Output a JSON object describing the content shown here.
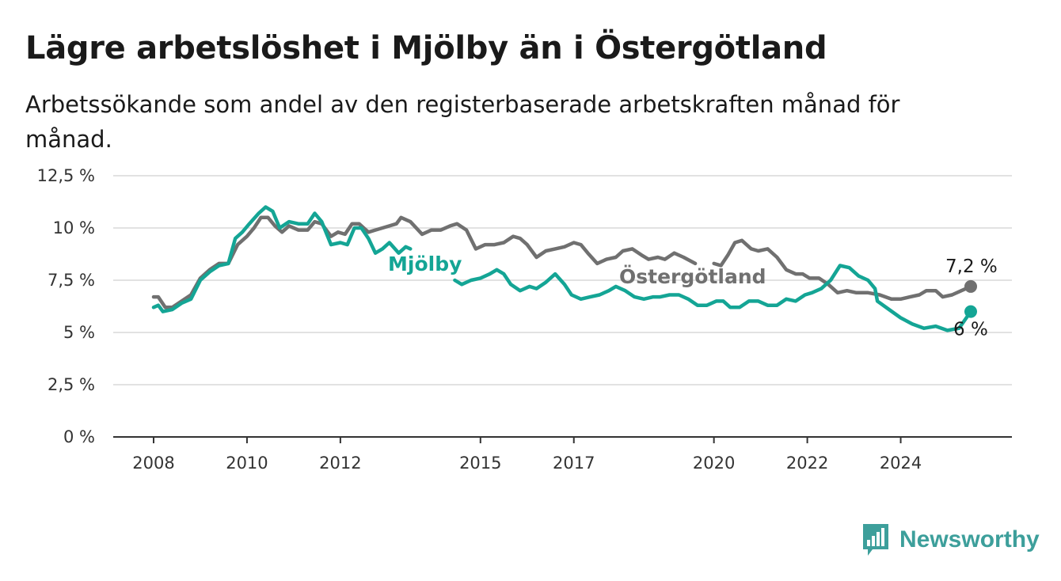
{
  "header": {
    "title": "Lägre arbetslöshet i Mjölby än i Östergötland",
    "subtitle": "Arbetssökande som andel av den registerbaserade arbetskraften månad för månad."
  },
  "brand": {
    "name": "Newsworthy",
    "icon": "bar-chart-logo-icon",
    "color": "#3d9f9b"
  },
  "chart_data": {
    "type": "line",
    "title": "Lägre arbetslöshet i Mjölby än i Östergötland",
    "subtitle": "Arbetssökande som andel av den registerbaserade arbetskraften månad för månad.",
    "ylim": [
      0,
      12.5
    ],
    "y_ticks": [
      0,
      2.5,
      5,
      7.5,
      10,
      12.5
    ],
    "y_tick_labels": [
      "0 %",
      "2,5 %",
      "5 %",
      "7,5 %",
      "10 %",
      "12,5 %"
    ],
    "x_ticks": [
      2008,
      2010,
      2012,
      2015,
      2017,
      2020,
      2022,
      2024
    ],
    "x_tick_labels": [
      "2008",
      "2010",
      "2012",
      "2015",
      "2017",
      "2020",
      "2022",
      "2024"
    ],
    "grid": true,
    "series": [
      {
        "name": "Östergötland",
        "color": "#707070",
        "end_label": "7,2 %",
        "points": [
          [
            2008.0,
            6.7
          ],
          [
            2008.1,
            6.7
          ],
          [
            2008.25,
            6.2
          ],
          [
            2008.4,
            6.2
          ],
          [
            2008.6,
            6.5
          ],
          [
            2008.8,
            6.8
          ],
          [
            2009.0,
            7.6
          ],
          [
            2009.2,
            8.0
          ],
          [
            2009.4,
            8.3
          ],
          [
            2009.6,
            8.3
          ],
          [
            2009.8,
            9.2
          ],
          [
            2010.0,
            9.6
          ],
          [
            2010.15,
            10.0
          ],
          [
            2010.3,
            10.5
          ],
          [
            2010.45,
            10.5
          ],
          [
            2010.6,
            10.1
          ],
          [
            2010.75,
            9.8
          ],
          [
            2010.9,
            10.1
          ],
          [
            2011.1,
            9.9
          ],
          [
            2011.3,
            9.9
          ],
          [
            2011.45,
            10.3
          ],
          [
            2011.6,
            10.2
          ],
          [
            2011.8,
            9.6
          ],
          [
            2011.95,
            9.8
          ],
          [
            2012.1,
            9.7
          ],
          [
            2012.25,
            10.2
          ],
          [
            2012.4,
            10.2
          ],
          [
            2012.6,
            9.8
          ],
          [
            2012.75,
            9.9
          ],
          [
            2012.9,
            10.0
          ],
          [
            2013.05,
            10.1
          ],
          [
            2013.2,
            10.2
          ],
          [
            2013.3,
            10.5
          ],
          [
            2013.5,
            10.3
          ],
          [
            2013.75,
            9.7
          ],
          [
            2013.95,
            9.9
          ],
          [
            2014.15,
            9.9
          ],
          [
            2014.35,
            10.1
          ],
          [
            2014.5,
            10.2
          ],
          [
            2014.7,
            9.9
          ],
          [
            2014.9,
            9.0
          ],
          [
            2015.1,
            9.2
          ],
          [
            2015.3,
            9.2
          ],
          [
            2015.5,
            9.3
          ],
          [
            2015.7,
            9.6
          ],
          [
            2015.85,
            9.5
          ],
          [
            2016.0,
            9.2
          ],
          [
            2016.2,
            8.6
          ],
          [
            2016.4,
            8.9
          ],
          [
            2016.6,
            9.0
          ],
          [
            2016.8,
            9.1
          ],
          [
            2017.0,
            9.3
          ],
          [
            2017.15,
            9.2
          ],
          [
            2017.3,
            8.8
          ],
          [
            2017.5,
            8.3
          ],
          [
            2017.7,
            8.5
          ],
          [
            2017.9,
            8.6
          ],
          [
            2018.05,
            8.9
          ],
          [
            2018.25,
            9.0
          ],
          [
            2018.45,
            8.7
          ],
          [
            2018.6,
            8.5
          ],
          [
            2018.8,
            8.6
          ],
          [
            2018.95,
            8.5
          ],
          [
            2019.15,
            8.8
          ],
          [
            2019.35,
            8.6
          ],
          [
            2019.6,
            8.3
          ],
          [
            2019.95,
            null
          ],
          [
            2020.0,
            8.3
          ],
          [
            2020.15,
            8.2
          ],
          [
            2020.3,
            8.7
          ],
          [
            2020.45,
            9.3
          ],
          [
            2020.6,
            9.4
          ],
          [
            2020.8,
            9.0
          ],
          [
            2020.95,
            8.9
          ],
          [
            2021.15,
            9.0
          ],
          [
            2021.35,
            8.6
          ],
          [
            2021.55,
            8.0
          ],
          [
            2021.75,
            7.8
          ],
          [
            2021.9,
            7.8
          ],
          [
            2022.05,
            7.6
          ],
          [
            2022.25,
            7.6
          ],
          [
            2022.45,
            7.3
          ],
          [
            2022.65,
            6.9
          ],
          [
            2022.85,
            7.0
          ],
          [
            2023.05,
            6.9
          ],
          [
            2023.3,
            6.9
          ],
          [
            2023.55,
            6.8
          ],
          [
            2023.8,
            6.6
          ],
          [
            2024.0,
            6.6
          ],
          [
            2024.2,
            6.7
          ],
          [
            2024.4,
            6.8
          ],
          [
            2024.55,
            7.0
          ],
          [
            2024.75,
            7.0
          ],
          [
            2024.9,
            6.7
          ],
          [
            2025.1,
            6.8
          ],
          [
            2025.3,
            7.0
          ],
          [
            2025.5,
            7.2
          ]
        ]
      },
      {
        "name": "Mjölby",
        "color": "#14a595",
        "end_label": "6 %",
        "points": [
          [
            2008.0,
            6.2
          ],
          [
            2008.1,
            6.3
          ],
          [
            2008.2,
            6.0
          ],
          [
            2008.4,
            6.1
          ],
          [
            2008.6,
            6.4
          ],
          [
            2008.8,
            6.6
          ],
          [
            2009.0,
            7.5
          ],
          [
            2009.2,
            7.9
          ],
          [
            2009.4,
            8.2
          ],
          [
            2009.6,
            8.3
          ],
          [
            2009.75,
            9.5
          ],
          [
            2009.9,
            9.8
          ],
          [
            2010.05,
            10.2
          ],
          [
            2010.25,
            10.7
          ],
          [
            2010.4,
            11.0
          ],
          [
            2010.55,
            10.8
          ],
          [
            2010.7,
            10.0
          ],
          [
            2010.9,
            10.3
          ],
          [
            2011.1,
            10.2
          ],
          [
            2011.3,
            10.2
          ],
          [
            2011.45,
            10.7
          ],
          [
            2011.6,
            10.3
          ],
          [
            2011.8,
            9.2
          ],
          [
            2012.0,
            9.3
          ],
          [
            2012.15,
            9.2
          ],
          [
            2012.3,
            10.0
          ],
          [
            2012.45,
            10.0
          ],
          [
            2012.6,
            9.5
          ],
          [
            2012.75,
            8.8
          ],
          [
            2012.9,
            9.0
          ],
          [
            2013.05,
            9.3
          ],
          [
            2013.25,
            8.8
          ],
          [
            2013.4,
            9.1
          ],
          [
            2013.5,
            9.0
          ],
          [
            2014.0,
            null
          ],
          [
            2014.45,
            7.5
          ],
          [
            2014.6,
            7.3
          ],
          [
            2014.8,
            7.5
          ],
          [
            2015.0,
            7.6
          ],
          [
            2015.2,
            7.8
          ],
          [
            2015.35,
            8.0
          ],
          [
            2015.5,
            7.8
          ],
          [
            2015.65,
            7.3
          ],
          [
            2015.85,
            7.0
          ],
          [
            2016.05,
            7.2
          ],
          [
            2016.2,
            7.1
          ],
          [
            2016.4,
            7.4
          ],
          [
            2016.6,
            7.8
          ],
          [
            2016.8,
            7.3
          ],
          [
            2016.95,
            6.8
          ],
          [
            2017.15,
            6.6
          ],
          [
            2017.35,
            6.7
          ],
          [
            2017.55,
            6.8
          ],
          [
            2017.75,
            7.0
          ],
          [
            2017.9,
            7.2
          ],
          [
            2018.1,
            7.0
          ],
          [
            2018.3,
            6.7
          ],
          [
            2018.5,
            6.6
          ],
          [
            2018.7,
            6.7
          ],
          [
            2018.85,
            6.7
          ],
          [
            2019.05,
            6.8
          ],
          [
            2019.25,
            6.8
          ],
          [
            2019.45,
            6.6
          ],
          [
            2019.65,
            6.3
          ],
          [
            2019.85,
            6.3
          ],
          [
            2020.05,
            6.5
          ],
          [
            2020.2,
            6.5
          ],
          [
            2020.35,
            6.2
          ],
          [
            2020.55,
            6.2
          ],
          [
            2020.75,
            6.5
          ],
          [
            2020.95,
            6.5
          ],
          [
            2021.15,
            6.3
          ],
          [
            2021.35,
            6.3
          ],
          [
            2021.55,
            6.6
          ],
          [
            2021.75,
            6.5
          ],
          [
            2021.95,
            6.8
          ],
          [
            2022.1,
            6.9
          ],
          [
            2022.3,
            7.1
          ],
          [
            2022.5,
            7.5
          ],
          [
            2022.7,
            8.2
          ],
          [
            2022.9,
            8.1
          ],
          [
            2023.1,
            7.7
          ],
          [
            2023.3,
            7.5
          ],
          [
            2023.45,
            7.1
          ],
          [
            2023.5,
            6.5
          ],
          [
            2023.75,
            6.1
          ],
          [
            2024.0,
            5.7
          ],
          [
            2024.25,
            5.4
          ],
          [
            2024.5,
            5.2
          ],
          [
            2024.75,
            5.3
          ],
          [
            2025.0,
            5.1
          ],
          [
            2025.25,
            5.2
          ],
          [
            2025.5,
            6.0
          ]
        ]
      }
    ]
  }
}
